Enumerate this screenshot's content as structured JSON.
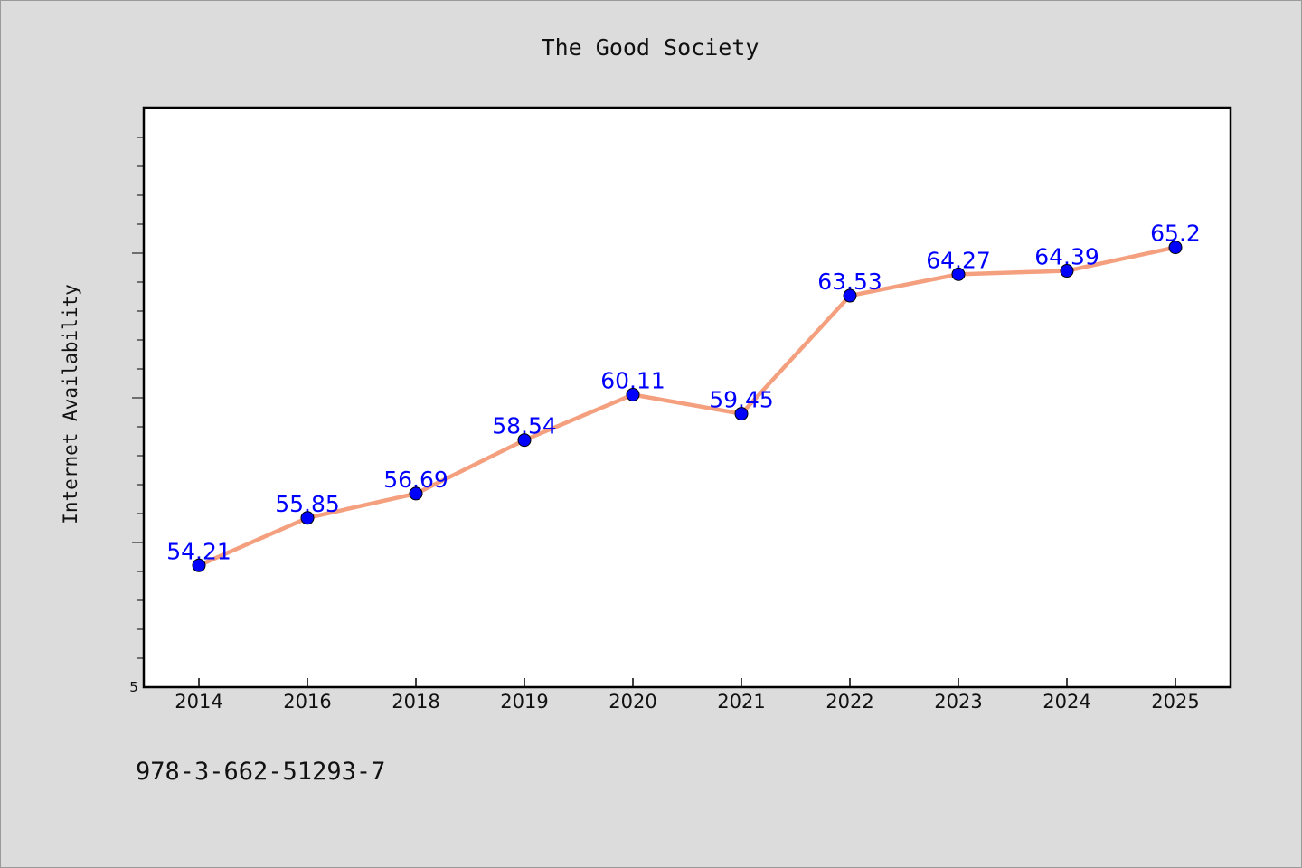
{
  "chart_data": {
    "type": "line",
    "title": "The Good Society",
    "xlabel": "",
    "ylabel": "Internet Availability",
    "categories": [
      "2014",
      "2016",
      "2018",
      "2019",
      "2020",
      "2021",
      "2022",
      "2023",
      "2024",
      "2025"
    ],
    "series": [
      {
        "values": [
          54.21,
          55.85,
          56.69,
          58.54,
          60.11,
          59.45,
          63.53,
          64.27,
          64.39,
          65.2
        ],
        "labels": [
          "54.21",
          "55.85",
          "56.69",
          "58.54",
          "60.11",
          "59.45",
          "63.53",
          "64.27",
          "64.39",
          "65.2"
        ]
      }
    ],
    "ytick_labels": [
      "5"
    ],
    "ylim": [
      50,
      70
    ],
    "grid": false,
    "legend": "none",
    "colors": {
      "line": "#f4a07f",
      "marker": "#0000ff",
      "data_label": "#0000ff",
      "plot_background": "#ffffff",
      "figure_background": "#dcdcdc"
    }
  },
  "footer": {
    "isbn": "978-3-662-51293-7"
  }
}
